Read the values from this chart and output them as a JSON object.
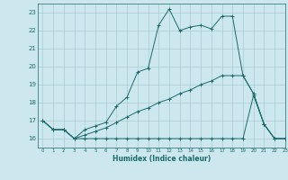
{
  "xlabel": "Humidex (Indice chaleur)",
  "bg_color": "#cce8ee",
  "line_color": "#1a6b6b",
  "grid_color": "#aaccd4",
  "xlim": [
    -0.5,
    23
  ],
  "ylim": [
    15.5,
    23.5
  ],
  "yticks": [
    16,
    17,
    18,
    19,
    20,
    21,
    22,
    23
  ],
  "xticks": [
    0,
    1,
    2,
    3,
    4,
    5,
    6,
    7,
    8,
    9,
    10,
    11,
    12,
    13,
    14,
    15,
    16,
    17,
    18,
    19,
    20,
    21,
    22,
    23
  ],
  "series": [
    {
      "x": [
        0,
        1,
        2,
        3,
        4,
        5,
        6,
        7,
        8,
        9,
        10,
        11,
        12,
        13,
        14,
        15,
        16,
        17,
        18,
        19,
        20,
        21,
        22,
        23
      ],
      "y": [
        17.0,
        16.5,
        16.5,
        16.0,
        16.5,
        16.7,
        16.9,
        17.8,
        18.3,
        19.7,
        19.9,
        22.3,
        23.2,
        22.0,
        22.2,
        22.3,
        22.1,
        22.8,
        22.8,
        19.5,
        18.5,
        16.8,
        16.0,
        16.0
      ]
    },
    {
      "x": [
        0,
        1,
        2,
        3,
        4,
        5,
        6,
        7,
        8,
        9,
        10,
        11,
        12,
        13,
        14,
        15,
        16,
        17,
        18,
        19,
        20,
        21,
        22,
        23
      ],
      "y": [
        17.0,
        16.5,
        16.5,
        16.0,
        16.2,
        16.4,
        16.6,
        16.9,
        17.2,
        17.5,
        17.7,
        18.0,
        18.2,
        18.5,
        18.7,
        19.0,
        19.2,
        19.5,
        19.5,
        19.5,
        18.5,
        16.8,
        16.0,
        16.0
      ]
    },
    {
      "x": [
        0,
        1,
        2,
        3,
        4,
        5,
        6,
        7,
        8,
        9,
        10,
        11,
        12,
        13,
        14,
        15,
        16,
        17,
        18,
        19,
        20,
        21,
        22,
        23
      ],
      "y": [
        17.0,
        16.5,
        16.5,
        16.0,
        16.0,
        16.0,
        16.0,
        16.0,
        16.0,
        16.0,
        16.0,
        16.0,
        16.0,
        16.0,
        16.0,
        16.0,
        16.0,
        16.0,
        16.0,
        16.0,
        18.4,
        16.8,
        16.0,
        16.0
      ]
    }
  ]
}
